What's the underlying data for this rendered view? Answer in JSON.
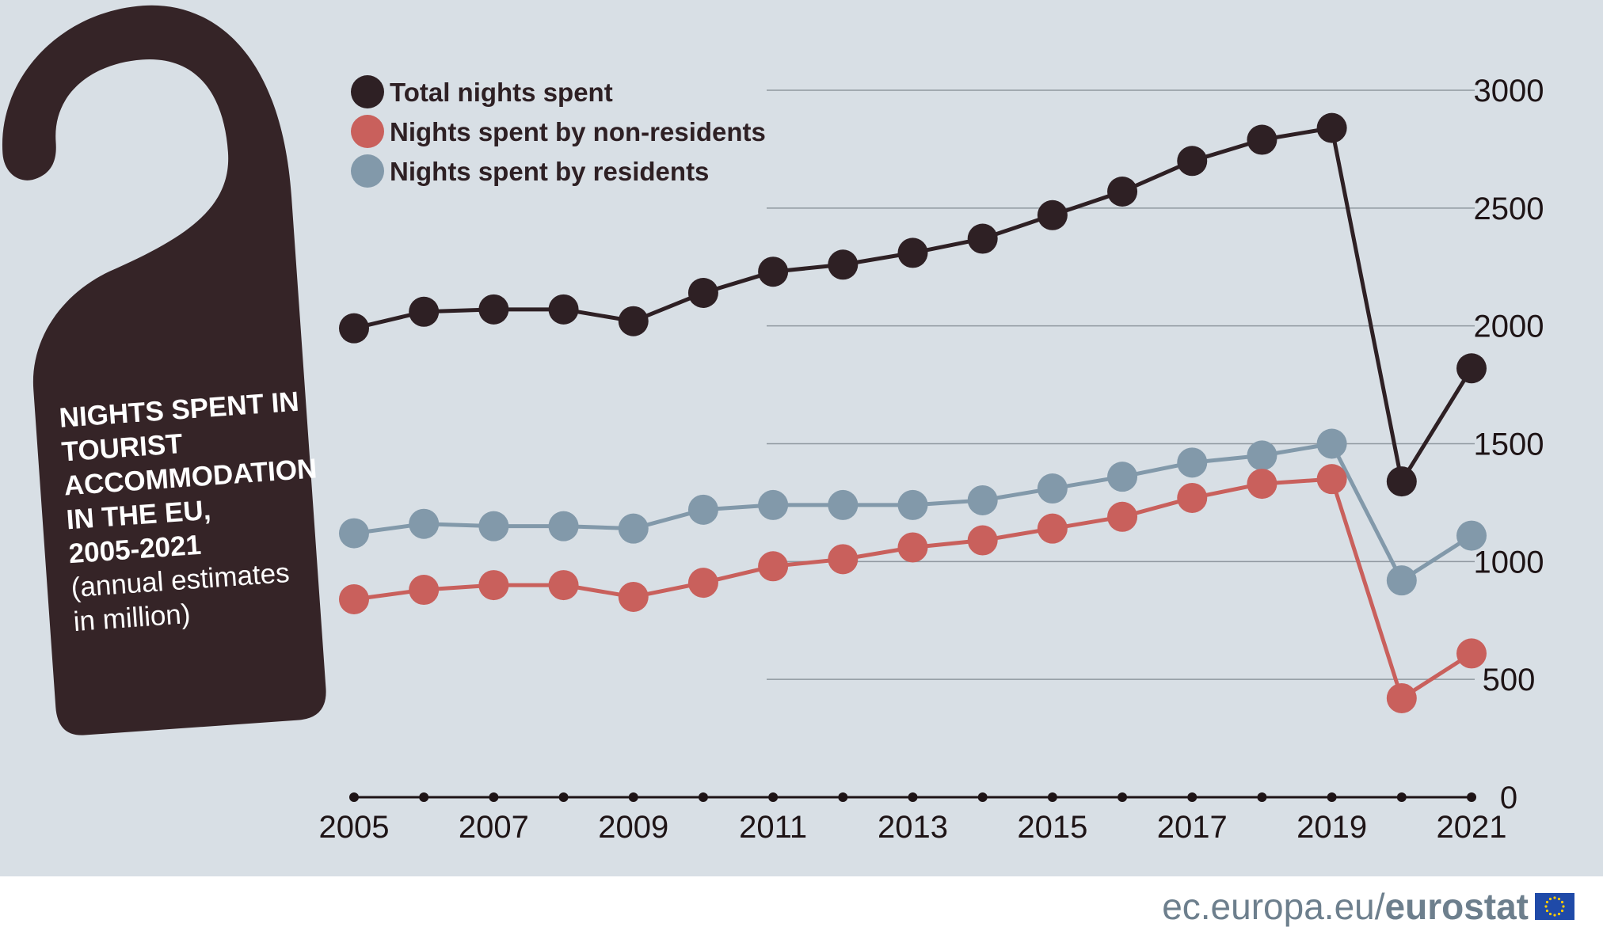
{
  "colors": {
    "background": "#d8dfe5",
    "footer": "#ffffff",
    "total": "#2e2024",
    "non_residents": "#c9605c",
    "residents": "#8299aa",
    "gridline": "#8f989f",
    "hanger": "#352427",
    "flag_blue": "#1f4aa8",
    "flag_star": "#ffcc00"
  },
  "credit": {
    "domain": "ec.europa.eu/",
    "brand": "eurostat"
  },
  "chart_data": {
    "type": "line",
    "title_lines": [
      "NIGHTS SPENT IN",
      "TOURIST",
      "ACCOMMODATION",
      "IN THE EU,",
      "2005-2021"
    ],
    "subtitle_lines": [
      "(annual estimates",
      "in million)"
    ],
    "x": [
      2005,
      2006,
      2007,
      2008,
      2009,
      2010,
      2011,
      2012,
      2013,
      2014,
      2015,
      2016,
      2017,
      2018,
      2019,
      2020,
      2021
    ],
    "x_tick_labels": [
      "2005",
      "2007",
      "2009",
      "2011",
      "2013",
      "2015",
      "2017",
      "2019",
      "2021"
    ],
    "y_ticks": [
      0,
      500,
      1000,
      1500,
      2000,
      2500,
      3000
    ],
    "y_tick_labels": [
      "0",
      "500",
      "1000",
      "1500",
      "2000",
      "2500",
      "3000"
    ],
    "ylim": [
      0,
      3000
    ],
    "xlabel": "",
    "ylabel": "",
    "grid": true,
    "y_axis_position": "right",
    "legend_position": "top-left",
    "series": [
      {
        "key": "total",
        "name": "Total nights spent",
        "values": [
          1990,
          2060,
          2070,
          2070,
          2020,
          2140,
          2230,
          2260,
          2310,
          2370,
          2470,
          2570,
          2700,
          2790,
          2840,
          1340,
          1820
        ]
      },
      {
        "key": "non_residents",
        "name": "Nights spent by non-residents",
        "values": [
          840,
          880,
          900,
          900,
          850,
          910,
          980,
          1010,
          1060,
          1090,
          1140,
          1190,
          1270,
          1330,
          1350,
          420,
          610
        ]
      },
      {
        "key": "residents",
        "name": "Nights spent by residents",
        "values": [
          1120,
          1160,
          1150,
          1150,
          1140,
          1220,
          1240,
          1240,
          1240,
          1260,
          1310,
          1360,
          1420,
          1450,
          1500,
          920,
          1110
        ]
      }
    ]
  }
}
